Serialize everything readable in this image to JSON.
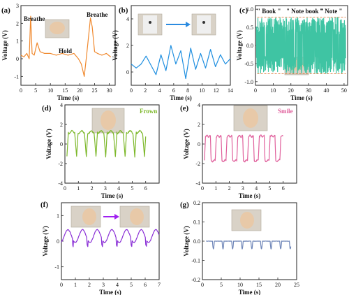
{
  "chart_data": [
    {
      "panel": "(a)",
      "type": "line",
      "color": "#f0892e",
      "xlabel": "Time (s)",
      "ylabel": "Voltage (V)",
      "xlim": [
        0,
        32
      ],
      "ylim": [
        -1.5,
        3
      ],
      "xticks": [
        "0",
        "5",
        "10",
        "15",
        "20",
        "25",
        "30"
      ],
      "yticks": [
        "-1",
        "0",
        "1",
        "2",
        "3"
      ],
      "annotations": [
        "Breathe",
        "Hold",
        "Breathe"
      ],
      "x": [
        0,
        1,
        2,
        2.8,
        3.3,
        3.8,
        4.5,
        5.5,
        6.5,
        8,
        10,
        12,
        14,
        16,
        18,
        19.5,
        20.5,
        21.5,
        22.3,
        23,
        23.6,
        24.2,
        25,
        26,
        27.5,
        29,
        30.5
      ],
      "y": [
        0.2,
        0.1,
        0.3,
        0.0,
        2.4,
        0.3,
        0.2,
        0.9,
        0.4,
        0.3,
        0.3,
        0.2,
        0.3,
        0.2,
        0.3,
        0.0,
        -0.3,
        -1.0,
        0.2,
        1.3,
        2.3,
        1.8,
        0.4,
        0.3,
        0.2,
        0.3,
        0.1
      ]
    },
    {
      "panel": "(b)",
      "type": "line",
      "color": "#1f8fe0",
      "xlabel": "Time (s)",
      "ylabel": "Voltage (V)",
      "xlim": [
        0,
        14
      ],
      "ylim": [
        -1,
        5
      ],
      "xticks": [
        "0",
        "2",
        "4",
        "6",
        "8",
        "10",
        "12",
        "14"
      ],
      "yticks": [
        "0",
        "2",
        "4"
      ],
      "x": [
        0,
        0.7,
        1.4,
        2.1,
        2.8,
        3.5,
        4.2,
        4.9,
        5.6,
        6.3,
        7.0,
        7.7,
        8.4,
        9.1,
        9.8,
        10.5,
        11.2,
        11.9,
        12.6,
        13.3,
        14
      ],
      "y": [
        0.6,
        0.3,
        0.6,
        1.2,
        0.5,
        -0.2,
        1.3,
        0.1,
        2.0,
        0.6,
        1.6,
        -0.5,
        1.8,
        0.2,
        1.4,
        0.3,
        1.7,
        0.4,
        1.3,
        0.6,
        1.0
      ]
    },
    {
      "panel": "(c)",
      "type": "line",
      "color": "#3fc4a3",
      "xlabel": "Time (s)",
      "ylabel": "Voltage (V)",
      "xlim": [
        0,
        52
      ],
      "ylim": [
        -1.1,
        1.1
      ],
      "xticks": [
        "0",
        "10",
        "20",
        "30",
        "40",
        "50"
      ],
      "yticks": [
        "-1.0",
        "-0.5",
        "0.0",
        "0.5",
        "1.0"
      ],
      "annotations": [
        "\" Book \"",
        "\" Note  book \"",
        "\" Note \""
      ],
      "amplitude_envelope": [
        0.78,
        -0.78
      ]
    },
    {
      "panel": "(d)",
      "type": "line",
      "color": "#7db82b",
      "label": "Frown",
      "xlabel": "Time (s)",
      "ylabel": "Voltage (V)",
      "xlim": [
        0,
        7
      ],
      "ylim": [
        -4,
        4
      ],
      "xticks": [
        "0",
        "1",
        "2",
        "3",
        "4",
        "5",
        "6"
      ],
      "yticks": [
        "-4",
        "-2",
        "0",
        "2",
        "4"
      ],
      "period": 0.72,
      "start": 0.15,
      "end": 6.0,
      "high": 1.2,
      "low": -1.3
    },
    {
      "panel": "(e)",
      "type": "line",
      "color": "#e0609c",
      "label": "Smile",
      "xlabel": "Time (s)",
      "ylabel": "Voltage (V)",
      "xlim": [
        0,
        7
      ],
      "ylim": [
        -4,
        4
      ],
      "xticks": [
        "0",
        "1",
        "2",
        "3",
        "4",
        "5",
        "6"
      ],
      "yticks": [
        "-4",
        "-2",
        "0",
        "2",
        "4"
      ],
      "period": 0.8,
      "start": 0.15,
      "end": 6.0,
      "high": 0.8,
      "low": -1.7
    },
    {
      "panel": "(f)",
      "type": "line",
      "color": "#8a2fd6",
      "xlabel": "Time (s)",
      "ylabel": "Voltage (V)",
      "xlim": [
        0,
        7
      ],
      "ylim": [
        -1.5,
        1.5
      ],
      "xticks": [
        "0",
        "1",
        "2",
        "3",
        "4",
        "5",
        "6",
        "7"
      ],
      "yticks": [
        "-1",
        "0",
        "1"
      ],
      "period": 1.05,
      "start": 0,
      "end": 7,
      "high": 0.45,
      "low": -0.05
    },
    {
      "panel": "(g)",
      "type": "line",
      "color": "#6f86b8",
      "xlabel": "Time (s)",
      "ylabel": "Voltage (V)",
      "xlim": [
        0,
        25
      ],
      "ylim": [
        -0.2,
        0.2
      ],
      "xticks": [
        "0",
        "5",
        "10",
        "15",
        "20",
        "25"
      ],
      "yticks": [
        "-0.2",
        "-0.1",
        "0.0",
        "0.1",
        "0.2"
      ],
      "period": 2.55,
      "start": 1,
      "end": 23.5,
      "high": 0.0,
      "low": -0.04
    }
  ]
}
